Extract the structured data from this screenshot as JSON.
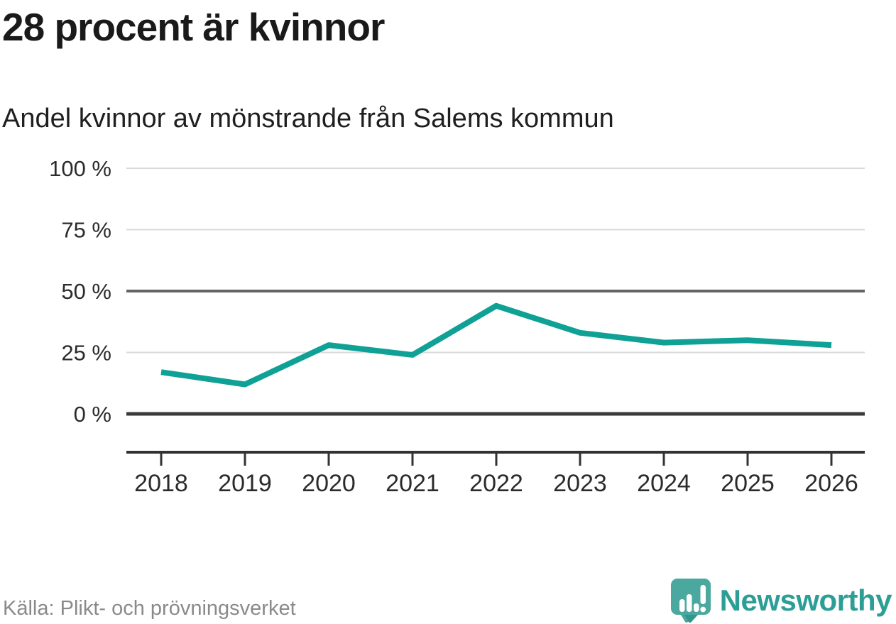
{
  "header": {
    "title": "28 procent är kvinnor",
    "subtitle": "Andel kvinnor av mönstrande från Salems kommun"
  },
  "footer": {
    "source": "Källa: Plikt- och prövningsverket",
    "logo_text": "Newsworthy"
  },
  "colors": {
    "line": "#0fa195",
    "logo_teal": "#2d9e96",
    "logo_bubble": "#4aa89e",
    "logo_bubble_dark": "#33968c",
    "grid_light": "#dadada",
    "grid_mid": "#646464",
    "grid_zero": "#3a3a3a",
    "axis": "#333333",
    "tick_label": "#2b2b2b"
  },
  "chart_data": {
    "type": "line",
    "title": "28 procent är kvinnor",
    "subtitle": "Andel kvinnor av mönstrande från Salems kommun",
    "x": [
      2018,
      2019,
      2020,
      2021,
      2022,
      2023,
      2024,
      2025,
      2026
    ],
    "series": [
      {
        "name": "Andel kvinnor av mönstrande från Salems kommun",
        "values": [
          17,
          12,
          28,
          24,
          44,
          33,
          29,
          30,
          28
        ]
      }
    ],
    "xlabel": "",
    "ylabel": "",
    "ylim": [
      0,
      100
    ],
    "yticks": [
      0,
      25,
      50,
      75,
      100
    ],
    "ytick_suffix": " %",
    "grid": true,
    "emphasized_gridlines": [
      0,
      50
    ],
    "legend": false
  }
}
